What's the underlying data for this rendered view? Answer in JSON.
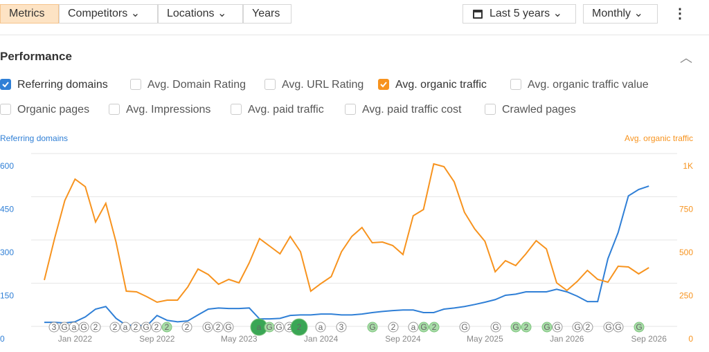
{
  "toolbar": {
    "tabs": [
      "Metrics",
      "Competitors",
      "Locations",
      "Years"
    ],
    "range": "Last 5 years",
    "interval": "Monthly"
  },
  "panel": {
    "title": "Performance",
    "options": [
      {
        "label": "Referring domains",
        "checked": true,
        "color": "#2f7fd6"
      },
      {
        "label": "Avg. Domain Rating",
        "checked": false
      },
      {
        "label": "Avg. URL Rating",
        "checked": false
      },
      {
        "label": "Avg. organic traffic",
        "checked": true,
        "color": "#f7931e"
      },
      {
        "label": "Avg. organic traffic value",
        "checked": false
      },
      {
        "label": "Organic pages",
        "checked": false
      },
      {
        "label": "Avg. Impressions",
        "checked": false
      },
      {
        "label": "Avg. paid traffic",
        "checked": false
      },
      {
        "label": "Avg. paid traffic cost",
        "checked": false
      },
      {
        "label": "Crawled pages",
        "checked": false
      }
    ]
  },
  "chart_data": {
    "type": "line",
    "y_label": "Referring domains",
    "y2_label": "Avg. organic traffic",
    "categories": [
      null,
      null,
      null,
      "Jan 2022",
      null,
      null,
      null,
      null,
      null,
      null,
      null,
      "Sep 2022",
      null,
      null,
      null,
      null,
      null,
      null,
      null,
      "May 2023",
      null,
      null,
      null,
      null,
      null,
      null,
      null,
      "Jan 2024",
      null,
      null,
      null,
      null,
      null,
      null,
      null,
      "Sep 2024",
      null,
      null,
      null,
      null,
      null,
      null,
      null,
      "May 2025",
      null,
      null,
      null,
      null,
      null,
      null,
      null,
      "Jan 2026",
      null,
      null,
      null,
      null,
      null,
      null,
      null,
      "Sep 2026"
    ],
    "series": [
      {
        "name": "Referring domains",
        "color": "#2f7fd6",
        "values": [
          14,
          14,
          12,
          16,
          33,
          60,
          69,
          28,
          4,
          4,
          2,
          38,
          21,
          16,
          19,
          40,
          60,
          64,
          62,
          62,
          64,
          26,
          26,
          28,
          38,
          40,
          40,
          43,
          43,
          40,
          40,
          43,
          48,
          52,
          55,
          57,
          57,
          48,
          48,
          60,
          64,
          69,
          76,
          84,
          93,
          108,
          112,
          120,
          120,
          120,
          129,
          120,
          105,
          86,
          86,
          235,
          326,
          453,
          475,
          487
        ]
      },
      {
        "name": "Avg. organic traffic",
        "color": "#f7931e",
        "axis": "y2",
        "values": [
          268,
          508,
          728,
          852,
          808,
          604,
          712,
          488,
          204,
          200,
          172,
          140,
          152,
          152,
          228,
          332,
          300,
          244,
          272,
          252,
          368,
          508,
          464,
          420,
          520,
          432,
          204,
          248,
          288,
          432,
          520,
          572,
          484,
          488,
          468,
          416,
          640,
          676,
          940,
          924,
          836,
          660,
          564,
          492,
          316,
          380,
          352,
          420,
          496,
          448,
          252,
          208,
          260,
          324,
          272,
          256,
          348,
          344,
          304,
          340
        ]
      }
    ],
    "ylim": [
      0,
      600
    ],
    "yticks": [
      0,
      150,
      300,
      450,
      600
    ],
    "y2lim": [
      0,
      1000
    ],
    "y2ticks": [
      0,
      250,
      500,
      750,
      {
        "value": 1000,
        "label": "1K"
      }
    ],
    "grid": true,
    "events": [
      "3",
      "G",
      "a",
      "G",
      "2",
      "2",
      "a",
      "2",
      "G",
      "2",
      "2",
      "2",
      "G",
      "2",
      "G",
      "a",
      "G",
      "G",
      "2",
      "2",
      "a",
      "3",
      "G",
      "2",
      "a",
      "G",
      "2",
      "G",
      "G",
      "G",
      "2",
      "G",
      "G",
      "G",
      "2",
      "G",
      "G",
      "G"
    ]
  }
}
